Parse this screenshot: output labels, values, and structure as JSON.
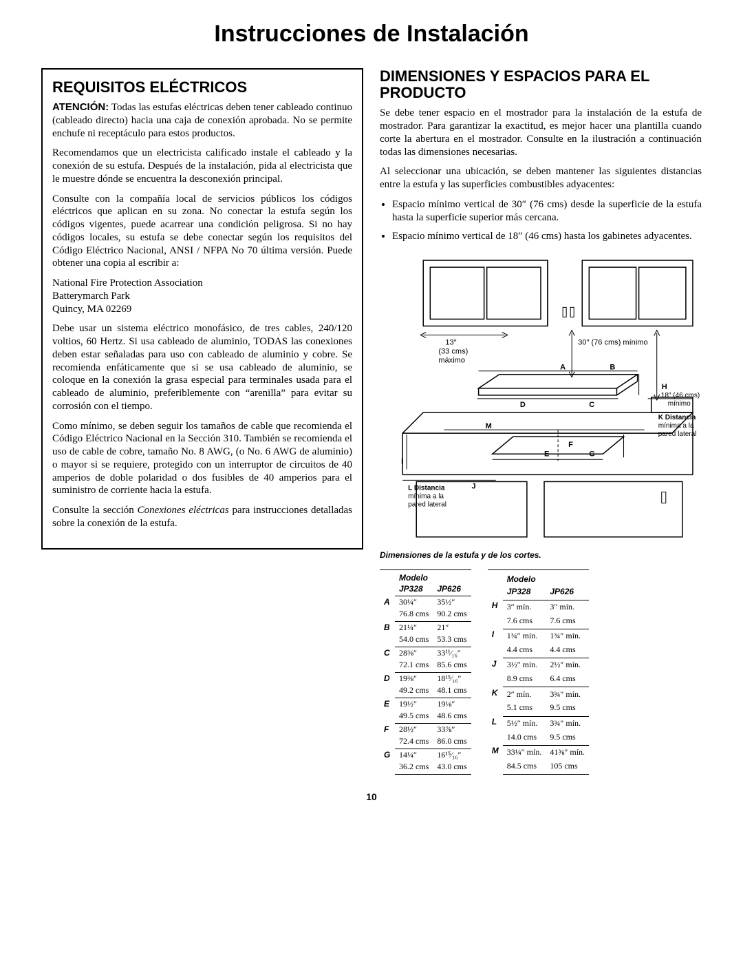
{
  "page": {
    "title": "Instrucciones de Instalación",
    "number": "10"
  },
  "left": {
    "heading": "REQUISITOS ELÉCTRICOS",
    "p_atten_label": "ATENCIÓN:",
    "p_atten": " Todas las estufas eléctricas deben tener cableado continuo (cableado directo) hacia una caja de conexión aprobada. No se permite enchufe ni receptáculo para estos productos.",
    "p2": "Recomendamos que un electricista calificado instale el cableado y la conexión de su estufa. Después de la instalación, pida al electricista que le muestre dónde se encuentra la desconexión principal.",
    "p3": "Consulte con la compañía local de servicios públicos los códigos eléctricos que aplican en su zona. No conectar la estufa según los códigos vigentes, puede acarrear una condición peligrosa. Si no hay códigos locales, su estufa se debe conectar según los requisitos del Código Eléctrico Nacional, ANSI / NFPA No 70 última versión. Puede obtener una copia al escribir a:",
    "addr1": "National Fire Protection Association",
    "addr2": "Batterymarch Park",
    "addr3": "Quincy, MA 02269",
    "p4": "Debe usar un sistema eléctrico monofásico, de tres cables, 240/120 voltios, 60 Hertz. Si usa cableado de aluminio, TODAS las conexiones deben estar señaladas para uso con cableado de aluminio y cobre. Se recomienda enfáticamente que si se usa cableado de aluminio, se coloque en la conexión la grasa especial para terminales usada para el cableado de aluminio, preferiblemente con “arenilla” para evitar su corrosión con el tiempo.",
    "p5": "Como mínimo, se deben seguir los tamaños de cable que recomienda el Código Eléctrico Nacional en la Sección 310. También se recomienda el uso de cable de cobre, tamaño No. 8 AWG, (o No. 6 AWG de aluminio) o mayor si se requiere, protegido con un interruptor de circuitos de 40 amperios de doble polaridad o dos fusibles de 40 amperios para el suministro de corriente hacia la estufa.",
    "p6a": "Consulte la sección ",
    "p6i": "Conexiones eléctricas",
    "p6b": " para instrucciones detalladas sobre la conexión de la estufa."
  },
  "right": {
    "heading": "DIMENSIONES Y ESPACIOS PARA EL PRODUCTO",
    "p1": "Se debe tener espacio en el mostrador para la instalación de la estufa de mostrador. Para garantizar la exactitud, es mejor hacer una plantilla cuando corte la abertura en el mostrador. Consulte en la ilustración a continuación todas las dimensiones necesarias.",
    "p2": "Al seleccionar una ubicación, se deben mantener las siguientes distancias entre la estufa y las superficies combustibles adyacentes:",
    "b1": "Espacio mínimo vertical de 30″ (76 cms) desde la superficie de la estufa hasta la superficie superior más cercana.",
    "b2": "Espacio mínimo vertical de 18″ (46 cms) hasta los gabinetes adyacentes.",
    "caption": "Dimensiones de la estufa y de los cortes.",
    "diag": {
      "l13a": "13″",
      "l13b": "(33 cms)",
      "l13c": "máximo",
      "r30": "30″ (76 cms) mínimo",
      "r18a": "18″ (46 cms)",
      "r18b": "mínimo",
      "kl1": "K Distancia",
      "kl2": "mínima a la",
      "kl3": "pared lateral",
      "ll1": "L Distancia",
      "ll2": "mínima a la",
      "ll3": "pared lateral",
      "lblA": "A",
      "lblB": "B",
      "lblC": "C",
      "lblD": "D",
      "lblE": "E",
      "lblF": "F",
      "lblG": "G",
      "lblH": "H",
      "lblI": "I",
      "lblJ": "J",
      "lblM": "M"
    }
  },
  "tables": {
    "hdr_model": "Modelo",
    "hdr_j328": "JP328",
    "hdr_j626": "JP626",
    "left": [
      {
        "k": "A",
        "v1": "30¼″",
        "c1": "76.8 cms",
        "v2": "35½″",
        "c2": "90.2 cms"
      },
      {
        "k": "B",
        "v1": "21¼″",
        "c1": "54.0 cms",
        "v2": "21″",
        "c2": "53.3 cms"
      },
      {
        "k": "C",
        "v1": "28⅜″",
        "c1": "72.1 cms",
        "v2": "33¹¹⁄₁₆″",
        "c2": "85.6 cms"
      },
      {
        "k": "D",
        "v1": "19⅜″",
        "c1": "49.2 cms",
        "v2": "18¹⁵⁄₁₆″",
        "c2": "48.1 cms"
      },
      {
        "k": "E",
        "v1": "19½″",
        "c1": "49.5 cms",
        "v2": "19⅛″",
        "c2": "48.6 cms"
      },
      {
        "k": "F",
        "v1": "28½″",
        "c1": "72.4 cms",
        "v2": "33⅞″",
        "c2": "86.0 cms"
      },
      {
        "k": "G",
        "v1": "14¼″",
        "c1": "36.2 cms",
        "v2": "16¹⁵⁄₁₆″",
        "c2": "43.0 cms"
      }
    ],
    "right": [
      {
        "k": "H",
        "v1": "3″ mín.",
        "c1": "7.6 cms",
        "v2": "3″ mín.",
        "c2": "7.6 cms"
      },
      {
        "k": "I",
        "v1": "1¾″ mín.",
        "c1": "4.4 cms",
        "v2": "1¾″ mín.",
        "c2": "4.4 cms"
      },
      {
        "k": "J",
        "v1": "3½″ mín.",
        "c1": "8.9 cms",
        "v2": "2½″ mín.",
        "c2": "6.4 cms"
      },
      {
        "k": "K",
        "v1": "2″ mín.",
        "c1": "5.1 cms",
        "v2": "3¾″ mín.",
        "c2": "9.5 cms"
      },
      {
        "k": "L",
        "v1": "5½″ mín.",
        "c1": "14.0 cms",
        "v2": "3¾″ mín.",
        "c2": "9.5 cms"
      },
      {
        "k": "M",
        "v1": "33¼″ mín.",
        "c1": "84.5 cms",
        "v2": "41⅜″ mín.",
        "c2": "105 cms"
      }
    ]
  }
}
